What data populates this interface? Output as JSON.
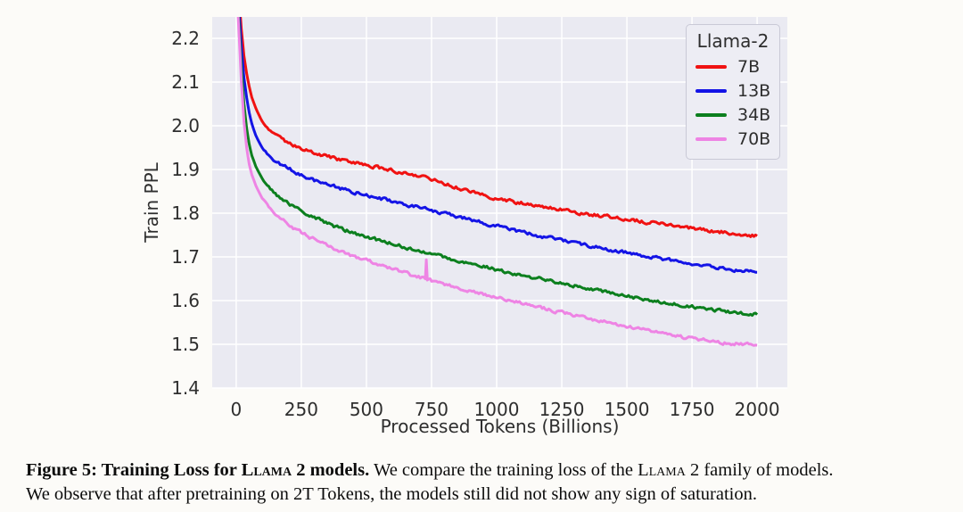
{
  "figure": {
    "caption": {
      "bold_prefix": "Figure 5: Training Loss for ",
      "bold_smallcaps": "Llama 2",
      "bold_suffix": " models.",
      "line1_text_a": " We compare the training loss of the ",
      "line1_smallcaps": "Llama 2",
      "line1_text_b": " family of models.",
      "line2_text": "We observe that after pretraining on 2T Tokens, the models still did not show any sign of saturation."
    }
  },
  "chart_data": {
    "type": "line",
    "title": "",
    "xlabel": "Processed Tokens (Billions)",
    "ylabel": "Train PPL",
    "xlim": [
      -92,
      2116
    ],
    "ylim": [
      1.4,
      2.249
    ],
    "xticks": [
      0,
      250,
      500,
      750,
      1000,
      1250,
      1500,
      1750,
      2000
    ],
    "yticks": [
      1.4,
      1.5,
      1.6,
      1.7,
      1.8,
      1.9,
      2.0,
      2.1,
      2.2
    ],
    "grid": true,
    "plot_bg": "#eaeaf2",
    "grid_color": "#ffffff",
    "legend": {
      "title": "Llama-2",
      "position": "upper right"
    },
    "series": [
      {
        "name": "7B",
        "color": "#f01212",
        "x": [
          0,
          10,
          20,
          30,
          40,
          50,
          60,
          75,
          100,
          125,
          150,
          175,
          200,
          250,
          300,
          350,
          400,
          450,
          500,
          550,
          600,
          650,
          700,
          750,
          800,
          850,
          900,
          950,
          1000,
          1050,
          1100,
          1150,
          1200,
          1250,
          1300,
          1350,
          1400,
          1450,
          1500,
          1550,
          1600,
          1650,
          1700,
          1750,
          1800,
          1850,
          1900,
          1950,
          2000
        ],
        "y": [
          2.4,
          2.3,
          2.22,
          2.16,
          2.12,
          2.09,
          2.065,
          2.04,
          2.01,
          1.99,
          1.978,
          1.968,
          1.96,
          1.948,
          1.938,
          1.93,
          1.922,
          1.916,
          1.91,
          1.904,
          1.898,
          1.892,
          1.886,
          1.878,
          1.868,
          1.858,
          1.849,
          1.841,
          1.834,
          1.828,
          1.823,
          1.818,
          1.813,
          1.808,
          1.803,
          1.798,
          1.794,
          1.79,
          1.786,
          1.782,
          1.778,
          1.774,
          1.77,
          1.766,
          1.762,
          1.758,
          1.754,
          1.751,
          1.748
        ]
      },
      {
        "name": "13B",
        "color": "#1414e6",
        "x": [
          0,
          10,
          20,
          30,
          40,
          50,
          60,
          75,
          100,
          125,
          150,
          175,
          200,
          250,
          300,
          350,
          400,
          450,
          500,
          550,
          600,
          650,
          700,
          750,
          800,
          850,
          900,
          950,
          1000,
          1050,
          1100,
          1150,
          1200,
          1250,
          1300,
          1350,
          1400,
          1450,
          1500,
          1550,
          1600,
          1650,
          1700,
          1750,
          1800,
          1850,
          1900,
          1950,
          2000
        ],
        "y": [
          2.38,
          2.27,
          2.18,
          2.11,
          2.065,
          2.03,
          2.005,
          1.978,
          1.95,
          1.932,
          1.92,
          1.91,
          1.902,
          1.888,
          1.876,
          1.866,
          1.857,
          1.849,
          1.841,
          1.834,
          1.827,
          1.82,
          1.813,
          1.806,
          1.799,
          1.792,
          1.785,
          1.777,
          1.77,
          1.763,
          1.756,
          1.75,
          1.744,
          1.738,
          1.732,
          1.726,
          1.72,
          1.714,
          1.709,
          1.704,
          1.699,
          1.694,
          1.689,
          1.684,
          1.679,
          1.675,
          1.671,
          1.668,
          1.665
        ]
      },
      {
        "name": "34B",
        "color": "#0c7f1e",
        "x": [
          0,
          10,
          20,
          30,
          40,
          50,
          60,
          75,
          100,
          125,
          150,
          175,
          200,
          250,
          300,
          350,
          400,
          450,
          500,
          550,
          600,
          650,
          700,
          750,
          800,
          850,
          900,
          950,
          1000,
          1050,
          1100,
          1150,
          1200,
          1250,
          1300,
          1350,
          1400,
          1450,
          1500,
          1550,
          1600,
          1650,
          1700,
          1750,
          1800,
          1850,
          1900,
          1950,
          2000
        ],
        "y": [
          2.36,
          2.24,
          2.13,
          2.05,
          1.995,
          1.958,
          1.932,
          1.908,
          1.88,
          1.86,
          1.845,
          1.832,
          1.822,
          1.805,
          1.79,
          1.777,
          1.765,
          1.755,
          1.746,
          1.738,
          1.73,
          1.722,
          1.714,
          1.707,
          1.699,
          1.692,
          1.685,
          1.678,
          1.671,
          1.664,
          1.658,
          1.652,
          1.646,
          1.64,
          1.634,
          1.628,
          1.622,
          1.616,
          1.611,
          1.606,
          1.601,
          1.596,
          1.591,
          1.586,
          1.582,
          1.578,
          1.574,
          1.571,
          1.568
        ]
      },
      {
        "name": "70B",
        "color": "#ee84e4",
        "x": [
          0,
          10,
          20,
          30,
          40,
          50,
          60,
          75,
          100,
          125,
          150,
          175,
          200,
          250,
          300,
          350,
          400,
          450,
          500,
          550,
          600,
          650,
          700,
          726,
          730,
          734,
          750,
          800,
          850,
          900,
          950,
          1000,
          1050,
          1100,
          1150,
          1200,
          1250,
          1300,
          1350,
          1400,
          1450,
          1500,
          1550,
          1600,
          1650,
          1700,
          1750,
          1800,
          1850,
          1900,
          1950,
          2000
        ],
        "y": [
          2.35,
          2.22,
          2.1,
          2.01,
          1.95,
          1.912,
          1.888,
          1.864,
          1.835,
          1.815,
          1.798,
          1.785,
          1.774,
          1.755,
          1.74,
          1.726,
          1.713,
          1.702,
          1.692,
          1.682,
          1.672,
          1.663,
          1.654,
          1.65,
          1.695,
          1.648,
          1.645,
          1.637,
          1.63,
          1.622,
          1.615,
          1.608,
          1.601,
          1.594,
          1.587,
          1.58,
          1.573,
          1.566,
          1.56,
          1.553,
          1.547,
          1.541,
          1.535,
          1.529,
          1.524,
          1.518,
          1.513,
          1.509,
          1.505,
          1.502,
          1.5,
          1.498
        ]
      }
    ]
  }
}
